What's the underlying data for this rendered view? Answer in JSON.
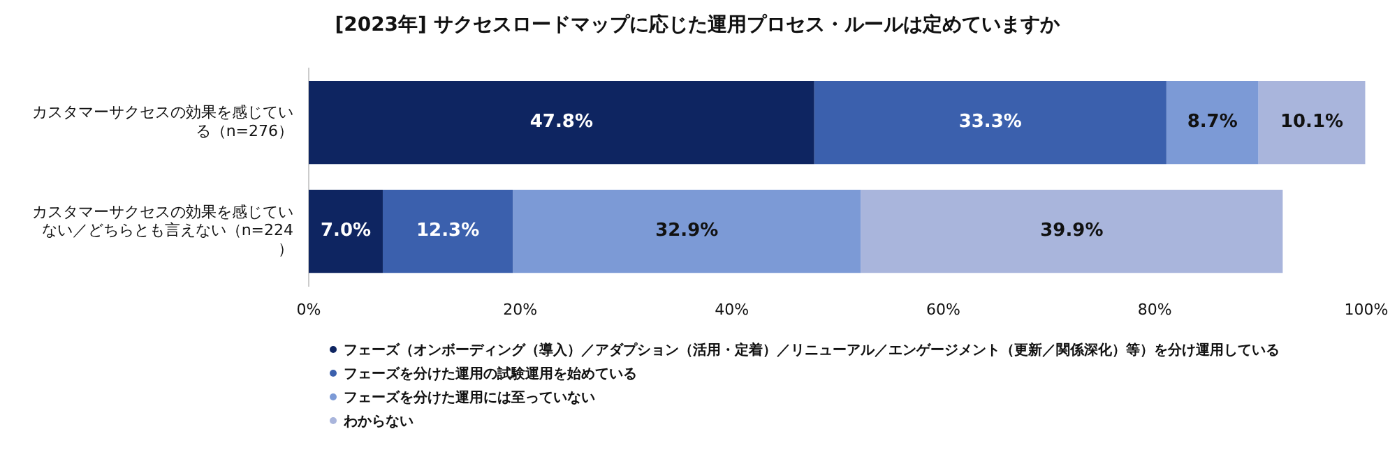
{
  "chart_data": {
    "type": "bar",
    "orientation": "horizontal",
    "stacked": true,
    "title": "[2023年] サクセスロードマップに応じた運用プロセス・ルールは定めていますか",
    "categories": [
      "カスタマーサクセスの効果を感じている（n=276）",
      "カスタマーサクセスの効果を感じていない／どちらとも言えない（n=224）"
    ],
    "series": [
      {
        "name": "フェーズ（オンボーディング（導入）／アダプション（活用・定着）／リニューアル／エンゲージメント（更新／関係深化）等）を分け運用している",
        "color": "#0e2561",
        "values": [
          47.8,
          7.0
        ],
        "value_labels": [
          "47.8%",
          "7.0%"
        ]
      },
      {
        "name": "フェーズを分けた運用の試験運用を始めている",
        "color": "#3b60ad",
        "values": [
          33.3,
          12.3
        ],
        "value_labels": [
          "33.3%",
          "12.3%"
        ]
      },
      {
        "name": "フェーズを分けた運用には至っていない",
        "color": "#7c9ad6",
        "values": [
          8.7,
          32.9
        ],
        "value_labels": [
          "8.7%",
          "32.9%"
        ]
      },
      {
        "name": "わからない",
        "color": "#a9b5dc",
        "values": [
          10.1,
          39.9
        ],
        "value_labels": [
          "10.1%",
          "39.9%"
        ]
      }
    ],
    "xlim": [
      0,
      100
    ],
    "xticks": [
      {
        "value": 0,
        "label": "0%"
      },
      {
        "value": 20,
        "label": "20%"
      },
      {
        "value": 40,
        "label": "40%"
      },
      {
        "value": 60,
        "label": "60%"
      },
      {
        "value": 80,
        "label": "80%"
      },
      {
        "value": 100,
        "label": "100%"
      }
    ],
    "legend": "bottom",
    "marker": "circle"
  }
}
